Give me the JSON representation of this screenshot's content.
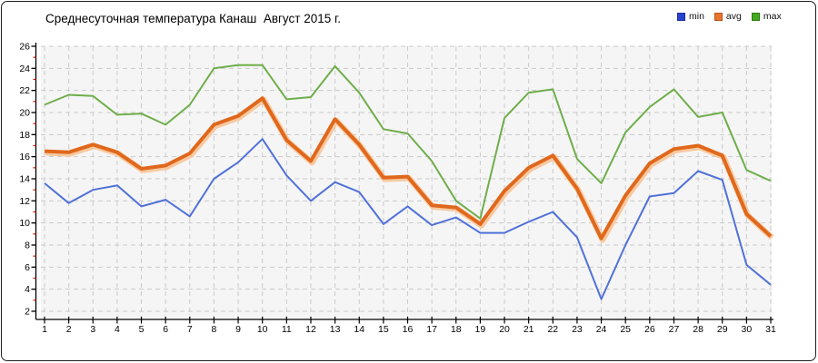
{
  "window": {
    "title": "Среднесуточная температура Канаш  Август 2015 г."
  },
  "legend": [
    {
      "label": "min",
      "color": "#2743d0",
      "border": "#1a2f9e"
    },
    {
      "label": "avg",
      "color": "#e8762d",
      "border": "#b5561c"
    },
    {
      "label": "max",
      "color": "#44a820",
      "border": "#2f7d14"
    }
  ],
  "colors": {
    "plot_bg": "#f5f5f5",
    "grid": "#cbcbcb",
    "axis": "#000000",
    "minor_tick": "#dd1100",
    "min_line": "#5071d8",
    "avg_line": "#e0681c",
    "avg_halo": "#f8c9a0",
    "max_line": "#6fae4b"
  },
  "chart_data": {
    "type": "line",
    "title": "Среднесуточная температура Канаш  Август 2015 г.",
    "x": [
      1,
      2,
      3,
      4,
      5,
      6,
      7,
      8,
      9,
      10,
      11,
      12,
      13,
      14,
      15,
      16,
      17,
      18,
      19,
      20,
      21,
      22,
      23,
      24,
      25,
      26,
      27,
      28,
      29,
      30,
      31
    ],
    "series": [
      {
        "name": "min",
        "values": [
          13.6,
          11.8,
          13.0,
          13.4,
          11.5,
          12.1,
          10.6,
          14.0,
          15.5,
          17.6,
          14.3,
          12.0,
          13.7,
          12.8,
          9.9,
          11.5,
          9.8,
          10.5,
          9.1,
          9.1,
          10.1,
          11.0,
          8.7,
          3.1,
          8.0,
          12.4,
          12.7,
          14.7,
          13.9,
          6.2,
          4.4
        ]
      },
      {
        "name": "avg",
        "values": [
          16.5,
          16.4,
          17.1,
          16.4,
          14.9,
          15.2,
          16.3,
          18.9,
          19.7,
          21.3,
          17.5,
          15.6,
          19.4,
          17.1,
          14.1,
          14.2,
          11.6,
          11.4,
          9.9,
          12.9,
          15.0,
          16.1,
          13.1,
          8.6,
          12.5,
          15.4,
          16.7,
          17.0,
          16.1,
          10.8,
          8.8
        ]
      },
      {
        "name": "max",
        "values": [
          20.7,
          21.6,
          21.5,
          19.8,
          19.9,
          18.9,
          20.7,
          24.0,
          24.3,
          24.3,
          21.2,
          21.4,
          24.2,
          21.8,
          18.5,
          18.1,
          15.6,
          12.0,
          10.4,
          19.5,
          21.8,
          22.1,
          15.8,
          13.6,
          18.2,
          20.5,
          22.1,
          19.6,
          20.0,
          14.8,
          13.8
        ]
      }
    ],
    "xlabel": "",
    "ylabel": "",
    "ylim": [
      2,
      26
    ],
    "y_ticks": [
      2,
      4,
      6,
      8,
      10,
      12,
      14,
      16,
      18,
      20,
      22,
      24,
      26
    ],
    "y_minor_ticks": [
      3,
      5,
      7,
      9,
      11,
      13,
      15,
      17,
      19,
      21,
      23,
      25
    ],
    "grid": true,
    "legend_position": "top-right"
  }
}
